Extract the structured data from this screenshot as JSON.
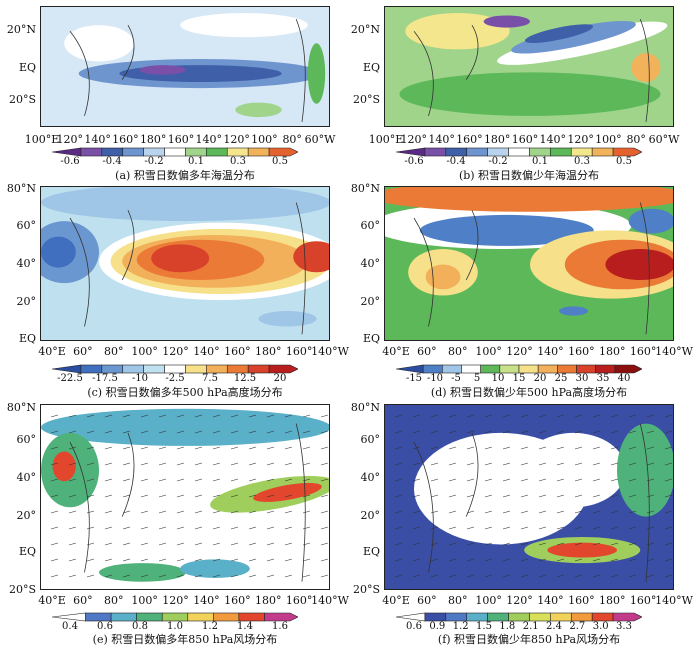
{
  "panels": [
    {
      "caption": "(a) 积雪日数偏多年海温分布",
      "lat_labels": [
        "20°N",
        "EQ",
        "20°S"
      ],
      "lon_labels": [
        "100°E",
        "120°",
        "140°",
        "160°",
        "180°",
        "160°",
        "140°",
        "120°",
        "100°",
        "80°",
        "60°W"
      ],
      "colorbar_labels": [
        "-0.6",
        "-0.4",
        "-0.2",
        "0.1",
        "0.3",
        "0.5"
      ],
      "colorbar_colors": [
        "#5a2a86",
        "#7a4fa8",
        "#3f5fa8",
        "#6f95cf",
        "#b7d3ee",
        "#ffffff",
        "#9fd48a",
        "#5db85a",
        "#f3e68c",
        "#f2b25a",
        "#e5622f"
      ]
    },
    {
      "caption": "(b) 积雪日数偏少年海温分布",
      "lat_labels": [
        "20°N",
        "EQ",
        "20°S"
      ],
      "lon_labels": [
        "100°E",
        "120°",
        "140°",
        "160°",
        "180°",
        "160°",
        "140°",
        "120°",
        "100°",
        "80°",
        "60°W"
      ],
      "colorbar_labels": [
        "-0.6",
        "-0.4",
        "-0.2",
        "0.1",
        "0.3",
        "0.5"
      ],
      "colorbar_colors": [
        "#5a2a86",
        "#7a4fa8",
        "#3f5fa8",
        "#6f95cf",
        "#b7d3ee",
        "#ffffff",
        "#9fd48a",
        "#5db85a",
        "#f3e68c",
        "#f2b25a",
        "#e5622f"
      ]
    },
    {
      "caption": "(c) 积雪日数偏多年500 hPa高度场分布",
      "lat_labels": [
        "80°N",
        "60°",
        "40°",
        "20°",
        "EQ"
      ],
      "lon_labels": [
        "40°E",
        "60°",
        "80°",
        "100°",
        "120°",
        "140°",
        "160°",
        "180°",
        "160°",
        "140°W"
      ],
      "colorbar_labels": [
        "-22.5",
        "-17.5",
        "-10",
        "-2.5",
        "7.5",
        "12.5",
        "20"
      ],
      "colorbar_colors": [
        "#2b4da0",
        "#3f6fbe",
        "#6b97d1",
        "#9fc6e6",
        "#bfe0ee",
        "#ffffff",
        "#f6e08a",
        "#f3b05a",
        "#eb7a36",
        "#d8412a",
        "#b81e1e"
      ]
    },
    {
      "caption": "(d) 积雪日数偏少年500 hPa高度场分布",
      "lat_labels": [
        "80°N",
        "60°",
        "40°",
        "20°",
        "EQ"
      ],
      "lon_labels": [
        "40°E",
        "60°",
        "80°",
        "100°",
        "120°",
        "140°",
        "160°",
        "180°",
        "160°",
        "140°W"
      ],
      "colorbar_labels": [
        "-15",
        "-10",
        "-5",
        "5",
        "10",
        "15",
        "20",
        "25",
        "30",
        "35",
        "40"
      ],
      "colorbar_colors": [
        "#2b4da0",
        "#4f7fc6",
        "#9fc6e6",
        "#ffffff",
        "#5db85a",
        "#c8e08a",
        "#f6e08a",
        "#f3b05a",
        "#eb7a36",
        "#d8412a",
        "#b81e1e",
        "#8a1010"
      ]
    },
    {
      "caption": "(e) 积雪日数偏多年850 hPa风场分布",
      "lat_labels": [
        "80°N",
        "60°",
        "40°",
        "20°",
        "EQ",
        "20°S"
      ],
      "lon_labels": [
        "40°E",
        "60°",
        "80°",
        "100°",
        "120°",
        "140°",
        "160°",
        "180°",
        "160°",
        "140°W"
      ],
      "colorbar_labels": [
        "0.4",
        "0.6",
        "0.8",
        "1.0",
        "1.2",
        "1.4",
        "1.6"
      ],
      "colorbar_colors": [
        "#ffffff",
        "#4f79c4",
        "#5ab0c8",
        "#4fb27a",
        "#9fce5c",
        "#f2d25a",
        "#f29a3e",
        "#e2462d",
        "#c23a8a"
      ]
    },
    {
      "caption": "(f) 积雪日数偏少年850 hPa风场分布",
      "lat_labels": [
        "80°N",
        "60°",
        "40°",
        "20°",
        "EQ",
        "20°S"
      ],
      "lon_labels": [
        "40°E",
        "60°",
        "80°",
        "100°",
        "120°",
        "140°",
        "160°",
        "180°",
        "160°",
        "140°W"
      ],
      "colorbar_labels": [
        "0.6",
        "0.9",
        "1.2",
        "1.5",
        "1.8",
        "2.1",
        "2.4",
        "2.7",
        "3.0",
        "3.3"
      ],
      "colorbar_colors": [
        "#ffffff",
        "#3a4ea6",
        "#4f79c4",
        "#5ab0c8",
        "#4fb27a",
        "#9fce5c",
        "#d8e05a",
        "#f2d25a",
        "#f29a3e",
        "#e2462d",
        "#c23a8a"
      ]
    }
  ]
}
